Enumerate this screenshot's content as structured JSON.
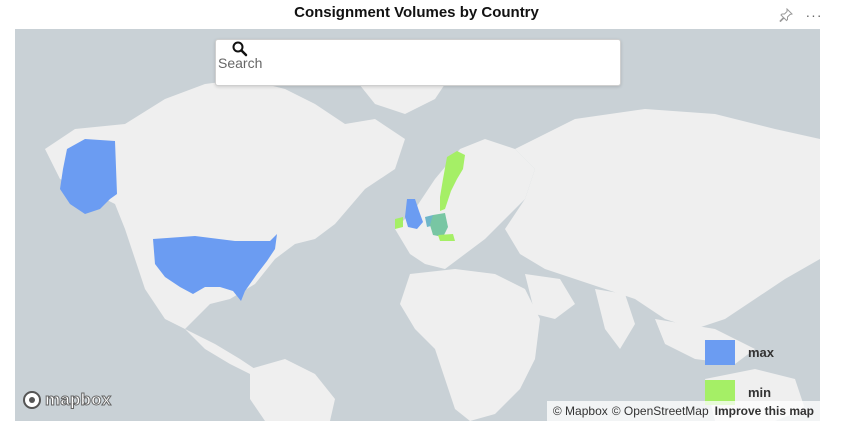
{
  "header": {
    "title": "Consignment Volumes by Country",
    "icons": [
      "pin-icon",
      "more-options-icon"
    ]
  },
  "search": {
    "placeholder": "Search",
    "value": ""
  },
  "map": {
    "water_color": "#c9d1d6",
    "land_color": "#efefef",
    "highlighted_countries": [
      {
        "name": "United States",
        "level": "max",
        "color": "#6b9cf2"
      },
      {
        "name": "Alaska (United States)",
        "level": "max",
        "color": "#6b9cf2"
      },
      {
        "name": "United Kingdom",
        "level": "max",
        "color": "#6b9cf2"
      },
      {
        "name": "Ireland",
        "level": "min",
        "color": "#a5ef66"
      },
      {
        "name": "Sweden",
        "level": "min",
        "color": "#a5ef66"
      },
      {
        "name": "Germany",
        "level": "mid",
        "color": "#78c6a3"
      },
      {
        "name": "Netherlands",
        "level": "mid",
        "color": "#6fb6c8"
      },
      {
        "name": "Austria",
        "level": "min",
        "color": "#a5ef66"
      }
    ]
  },
  "legend": {
    "items": [
      {
        "label": "max",
        "color": "#6b9cf2"
      },
      {
        "label": "min",
        "color": "#a5ef66"
      }
    ]
  },
  "branding": {
    "logo_text": "mapbox"
  },
  "attribution": {
    "mapbox": "© Mapbox",
    "osm": "© OpenStreetMap",
    "improve": "Improve this map"
  }
}
